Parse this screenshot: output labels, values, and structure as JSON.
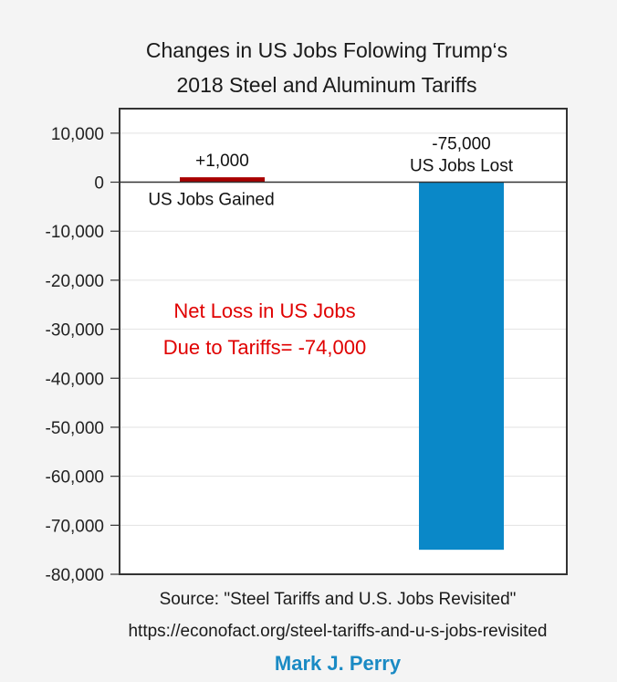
{
  "chart_data": {
    "type": "bar",
    "title": "Changes in US Jobs Folowing Trump‘s 2018 Steel and Aluminum Tariffs",
    "title_lines": [
      "Changes in US Jobs Folowing Trump‘s",
      "2018 Steel and Aluminum Tariffs"
    ],
    "categories": [
      "US Jobs Gained",
      "US Jobs Lost"
    ],
    "values": [
      1000,
      -75000
    ],
    "colors": [
      "#a80000",
      "#0a88c8"
    ],
    "data_labels": [
      {
        "lines": [
          "+1,000"
        ],
        "below": [
          "US Jobs Gained"
        ]
      },
      {
        "lines": [
          "-75,000",
          "US Jobs Lost"
        ],
        "below": []
      }
    ],
    "ylim": [
      -80000,
      15000
    ],
    "yticks": [
      10000,
      0,
      -10000,
      -20000,
      -30000,
      -40000,
      -50000,
      -60000,
      -70000,
      -80000
    ],
    "ytick_labels": [
      "10,000",
      "0",
      "-10,000",
      "-20,000",
      "-30,000",
      "-40,000",
      "-50,000",
      "-60,000",
      "-70,000",
      "-80,000"
    ],
    "grid": true,
    "xlabel": "",
    "ylabel": "",
    "annotations": [
      "Net Loss in US Jobs",
      "Due to Tariffs= -74,000"
    ],
    "annotation_color": "#e00000",
    "legend": "none"
  },
  "footer": {
    "source": "Source: \"Steel Tariffs and U.S. Jobs Revisited\"",
    "url": "https://econofact.org/steel-tariffs-and-u-s-jobs-revisited",
    "author": "Mark J. Perry",
    "author_color": "#1a8ac4"
  }
}
